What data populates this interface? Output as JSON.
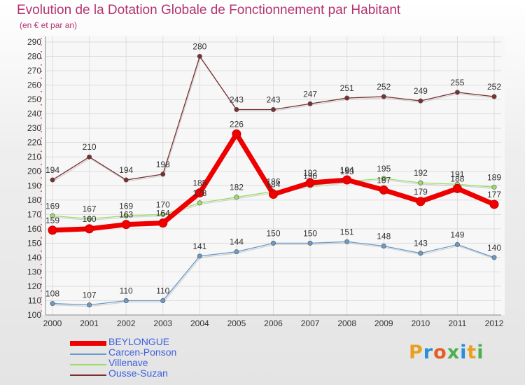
{
  "title": "Evolution de la Dotation Globale de Fonctionnement par Habitant",
  "subtitle": "(en € et par an)",
  "logo": {
    "text": "Proxiti",
    "colors": [
      "#e8a020",
      "#2a8fd8",
      "#e55d20",
      "#4caf50",
      "#2a8fd8",
      "#e8a020",
      "#4caf50"
    ]
  },
  "chart_data": {
    "type": "line",
    "title": "Evolution de la Dotation Globale de Fonctionnement par Habitant",
    "ylabel": "(en € et par an)",
    "xlabel": "",
    "ylim": [
      100,
      290
    ],
    "yticks": [
      100,
      110,
      120,
      130,
      140,
      150,
      160,
      170,
      180,
      190,
      200,
      210,
      220,
      230,
      240,
      250,
      260,
      270,
      280,
      290
    ],
    "categories": [
      "2000",
      "2001",
      "2002",
      "2003",
      "2004",
      "2005",
      "2006",
      "2007",
      "2008",
      "2009",
      "2010",
      "2011",
      "2012"
    ],
    "grid": true,
    "series": [
      {
        "name": "BEYLONGUE",
        "color": "#ee0000",
        "values": [
          159,
          160,
          163,
          164,
          185,
          226,
          184,
          192,
          194,
          187,
          179,
          188,
          177
        ]
      },
      {
        "name": "Carcen-Ponson",
        "color": "#6a9ac8",
        "values": [
          108,
          107,
          110,
          110,
          141,
          144,
          150,
          150,
          151,
          148,
          143,
          149,
          140
        ]
      },
      {
        "name": "Villenave",
        "color": "#99dd66",
        "values": [
          169,
          167,
          169,
          170,
          178,
          182,
          186,
          190,
          193,
          195,
          192,
          191,
          189
        ]
      },
      {
        "name": "Ousse-Suzan",
        "color": "#7a3030",
        "values": [
          194,
          210,
          194,
          198,
          280,
          243,
          243,
          247,
          251,
          252,
          249,
          255,
          252
        ]
      }
    ]
  }
}
